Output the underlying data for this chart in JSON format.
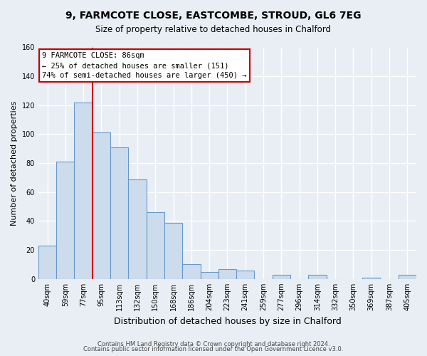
{
  "title_line1": "9, FARMCOTE CLOSE, EASTCOMBE, STROUD, GL6 7EG",
  "title_line2": "Size of property relative to detached houses in Chalford",
  "xlabel": "Distribution of detached houses by size in Chalford",
  "ylabel": "Number of detached properties",
  "bar_labels": [
    "40sqm",
    "59sqm",
    "77sqm",
    "95sqm",
    "113sqm",
    "132sqm",
    "150sqm",
    "168sqm",
    "186sqm",
    "204sqm",
    "223sqm",
    "241sqm",
    "259sqm",
    "277sqm",
    "296sqm",
    "314sqm",
    "332sqm",
    "350sqm",
    "369sqm",
    "387sqm",
    "405sqm"
  ],
  "bar_values": [
    23,
    81,
    122,
    101,
    91,
    69,
    46,
    39,
    10,
    5,
    7,
    6,
    0,
    3,
    0,
    3,
    0,
    0,
    1,
    0,
    3
  ],
  "bar_color": "#cddcec",
  "bar_edge_color": "#6699cc",
  "vline_color": "#cc0000",
  "ylim": [
    0,
    160
  ],
  "yticks": [
    0,
    20,
    40,
    60,
    80,
    100,
    120,
    140,
    160
  ],
  "annotation_title": "9 FARMCOTE CLOSE: 86sqm",
  "annotation_line1": "← 25% of detached houses are smaller (151)",
  "annotation_line2": "74% of semi-detached houses are larger (450) →",
  "annotation_box_facecolor": "#ffffff",
  "annotation_box_edgecolor": "#cc0000",
  "footer_line1": "Contains HM Land Registry data © Crown copyright and database right 2024.",
  "footer_line2": "Contains public sector information licensed under the Open Government Licence v3.0.",
  "background_color": "#e8eef4",
  "grid_color": "#ffffff",
  "title_fontsize": 10,
  "subtitle_fontsize": 8.5,
  "ylabel_fontsize": 8,
  "xlabel_fontsize": 9,
  "tick_fontsize": 7,
  "footer_fontsize": 6
}
